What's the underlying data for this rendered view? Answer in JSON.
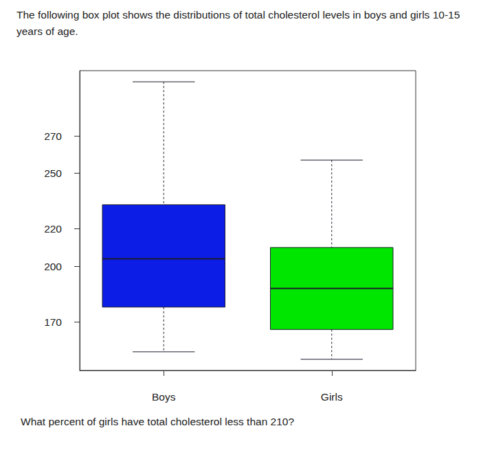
{
  "chart_data": {
    "type": "boxplot",
    "title": "The following box plot shows the distributions of total cholesterol levels in boys and girls 10-15 years of age.",
    "annotations": [
      "What percent of girls have total cholesterol less than 210?"
    ],
    "categories": [
      "Boys",
      "Girls"
    ],
    "values": [
      [
        154,
        178,
        204,
        233,
        299
      ],
      [
        150,
        166,
        188,
        210,
        257
      ]
    ],
    "colors": [
      "#0c1de6",
      "#00e600"
    ],
    "ylim": [
      144,
      305
    ],
    "yticks": [
      170,
      200,
      220,
      250,
      270
    ],
    "grid": false
  }
}
